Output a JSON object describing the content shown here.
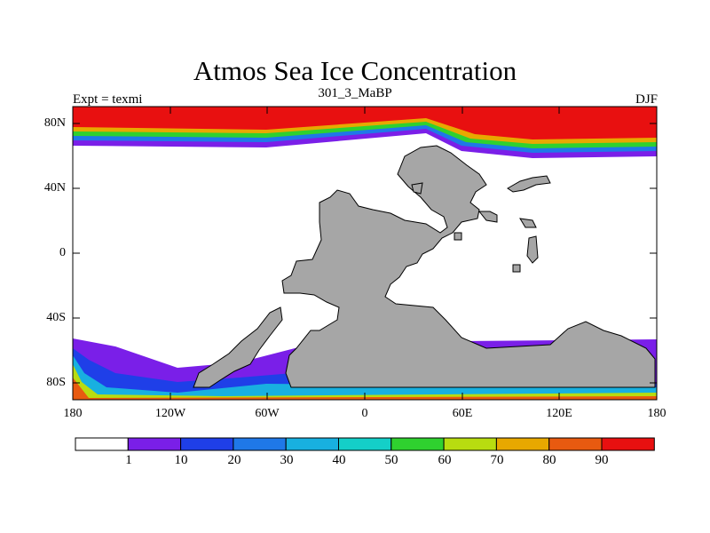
{
  "title": "Atmos Sea Ice Concentration",
  "subtitle": "301_3_MaBP",
  "left_label": "Expt = texmi",
  "right_label": "DJF",
  "axes": {
    "y_ticks": [
      "80N",
      "40N",
      "0",
      "40S",
      "80S"
    ],
    "x_ticks": [
      "180",
      "120W",
      "60W",
      "0",
      "60E",
      "120E",
      "180"
    ]
  },
  "colorbar": {
    "labels": [
      "1",
      "10",
      "20",
      "30",
      "40",
      "50",
      "60",
      "70",
      "80",
      "90"
    ],
    "colors": [
      "#ffffff",
      "#7a1fe8",
      "#1f3fe8",
      "#1f78e8",
      "#18b0e0",
      "#14cfc8",
      "#2fd12f",
      "#b8dc10",
      "#e8a800",
      "#e85a10",
      "#e81010"
    ]
  },
  "colors": {
    "land": "#a6a6a6",
    "ocean": "#ffffff",
    "coast": "#000000"
  }
}
